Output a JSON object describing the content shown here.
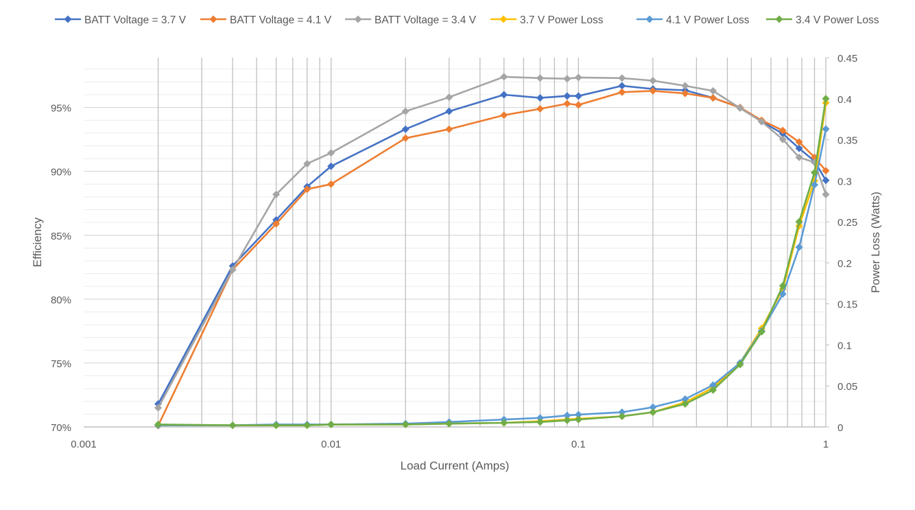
{
  "chart_data": {
    "type": "line",
    "title": "",
    "xlabel": "Load Current (Amps)",
    "ylabel": "Efficiency",
    "y2label": "Power Loss (Watts)",
    "x_scale": "log",
    "xlim": [
      0.001,
      1
    ],
    "ylim": [
      70,
      98.9
    ],
    "y2lim": [
      0,
      0.45
    ],
    "grid": true,
    "legend": "top",
    "x_ticks": [
      "0.001",
      "0.01",
      "0.1",
      "1"
    ],
    "y_ticks": [
      "70%",
      "75%",
      "80%",
      "85%",
      "90%",
      "95%"
    ],
    "y2_ticks": [
      "0",
      "0.05",
      "0.1",
      "0.15",
      "0.2",
      "0.25",
      "0.3",
      "0.35",
      "0.4",
      "0.45"
    ],
    "x": [
      0.002,
      0.004,
      0.006,
      0.008,
      0.01,
      0.02,
      0.03,
      0.05,
      0.07,
      0.09,
      0.1,
      0.15,
      0.2,
      0.27,
      0.35,
      0.45,
      0.55,
      0.67,
      0.78,
      0.9,
      1
    ],
    "series": [
      {
        "name": "BATT Voltage = 3.7 V",
        "axis": "left",
        "color": "#4472C4",
        "values": [
          71.8,
          82.6,
          86.2,
          88.8,
          90.4,
          93.3,
          94.7,
          96.0,
          95.75,
          95.9,
          95.9,
          96.7,
          96.45,
          96.35,
          95.75,
          95.0,
          93.9,
          92.95,
          91.8,
          90.8,
          89.3
        ]
      },
      {
        "name": "BATT Voltage = 4.1 V",
        "axis": "left",
        "color": "#ED7D31",
        "values": [
          70.1,
          82.3,
          85.9,
          88.6,
          89.0,
          92.6,
          93.3,
          94.4,
          94.9,
          95.3,
          95.2,
          96.2,
          96.3,
          96.1,
          95.75,
          95.0,
          94.0,
          93.2,
          92.3,
          91.1,
          90.05
        ]
      },
      {
        "name": "BATT Voltage = 3.4 V",
        "axis": "left",
        "color": "#A5A5A5",
        "values": [
          71.5,
          82.3,
          88.2,
          90.6,
          91.45,
          94.7,
          95.8,
          97.4,
          97.3,
          97.25,
          97.35,
          97.3,
          97.1,
          96.7,
          96.3,
          94.95,
          93.9,
          92.5,
          91.1,
          90.7,
          88.2
        ]
      },
      {
        "name": "3.7 V Power Loss",
        "axis": "right",
        "color": "#FFC000",
        "values": [
          0.002,
          0.002,
          0.002,
          0.002,
          0.003,
          0.003,
          0.004,
          0.005,
          0.007,
          0.009,
          0.01,
          0.013,
          0.018,
          0.03,
          0.048,
          0.078,
          0.12,
          0.168,
          0.245,
          0.3,
          0.395
        ]
      },
      {
        "name": "4.1 V Power Loss",
        "axis": "right",
        "color": "#5B9BD5",
        "values": [
          0.002,
          0.002,
          0.003,
          0.003,
          0.003,
          0.004,
          0.006,
          0.009,
          0.011,
          0.014,
          0.015,
          0.018,
          0.024,
          0.034,
          0.051,
          0.078,
          0.117,
          0.162,
          0.219,
          0.295,
          0.363
        ]
      },
      {
        "name": "3.4 V Power Loss",
        "axis": "right",
        "color": "#70AD47",
        "values": [
          0.003,
          0.002,
          0.002,
          0.002,
          0.003,
          0.003,
          0.004,
          0.005,
          0.006,
          0.008,
          0.009,
          0.013,
          0.018,
          0.028,
          0.045,
          0.076,
          0.116,
          0.172,
          0.25,
          0.31,
          0.4
        ]
      }
    ]
  }
}
